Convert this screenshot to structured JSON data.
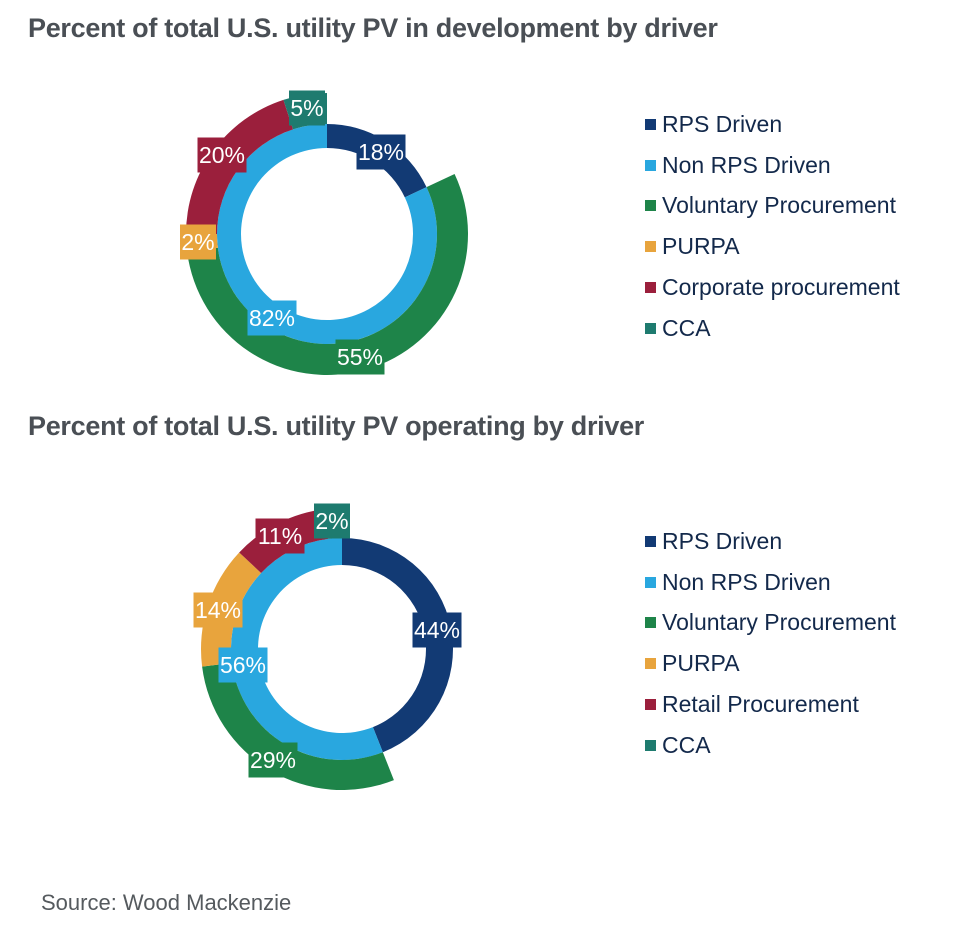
{
  "colors": {
    "rps": "#123a74",
    "non_rps": "#29a7df",
    "voluntary": "#1e8449",
    "purpa": "#e8a43d",
    "corporate": "#9b1f3c",
    "retail": "#9b1f3c",
    "cca": "#1e7b6f"
  },
  "chart_data": [
    {
      "type": "pie",
      "subtype": "nested-donut",
      "title": "Percent of total U.S. utility PV in development by driver",
      "inner_ring": [
        {
          "name": "RPS Driven",
          "value": 18,
          "label": "18%",
          "color_key": "rps"
        },
        {
          "name": "Non RPS Driven",
          "value": 82,
          "label": "82%",
          "color_key": "non_rps"
        }
      ],
      "outer_ring_breakdown_of": "Non RPS Driven",
      "outer_ring": [
        {
          "name": "Voluntary Procurement",
          "value": 55,
          "label": "55%",
          "color_key": "voluntary"
        },
        {
          "name": "PURPA",
          "value": 2,
          "label": "2%",
          "color_key": "purpa"
        },
        {
          "name": "Corporate procurement",
          "value": 20,
          "label": "20%",
          "color_key": "corporate"
        },
        {
          "name": "CCA",
          "value": 5,
          "label": "5%",
          "color_key": "cca"
        }
      ],
      "legend": [
        {
          "label": "RPS Driven",
          "color_key": "rps"
        },
        {
          "label": "Non RPS Driven",
          "color_key": "non_rps"
        },
        {
          "label": "Voluntary Procurement",
          "color_key": "voluntary"
        },
        {
          "label": "PURPA",
          "color_key": "purpa"
        },
        {
          "label": "Corporate procurement",
          "color_key": "corporate"
        },
        {
          "label": "CCA",
          "color_key": "cca"
        }
      ],
      "legend_position": "right"
    },
    {
      "type": "pie",
      "subtype": "nested-donut",
      "title": "Percent of total U.S. utility PV operating by driver",
      "inner_ring": [
        {
          "name": "RPS Driven",
          "value": 44,
          "label": "44%",
          "color_key": "rps"
        },
        {
          "name": "Non RPS Driven",
          "value": 56,
          "label": "56%",
          "color_key": "non_rps"
        }
      ],
      "outer_ring_breakdown_of": "Non RPS Driven",
      "outer_ring": [
        {
          "name": "Voluntary Procurement",
          "value": 29,
          "label": "29%",
          "color_key": "voluntary"
        },
        {
          "name": "PURPA",
          "value": 14,
          "label": "14%",
          "color_key": "purpa"
        },
        {
          "name": "Retail Procurement",
          "value": 11,
          "label": "11%",
          "color_key": "retail"
        },
        {
          "name": "CCA",
          "value": 2,
          "label": "2%",
          "color_key": "cca"
        }
      ],
      "legend": [
        {
          "label": "RPS Driven",
          "color_key": "rps"
        },
        {
          "label": "Non RPS Driven",
          "color_key": "non_rps"
        },
        {
          "label": "Voluntary Procurement",
          "color_key": "voluntary"
        },
        {
          "label": "PURPA",
          "color_key": "purpa"
        },
        {
          "label": "Retail Procurement",
          "color_key": "retail"
        },
        {
          "label": "CCA",
          "color_key": "cca"
        }
      ],
      "legend_position": "right"
    }
  ],
  "source": "Source: Wood Mackenzie"
}
